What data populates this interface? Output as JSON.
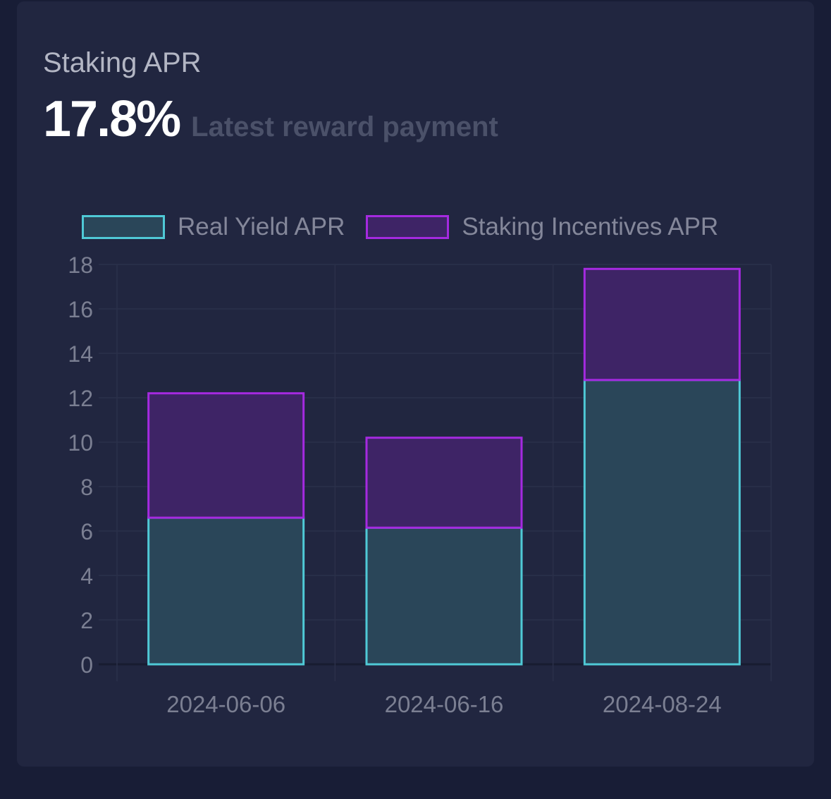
{
  "card": {
    "title": "Staking APR",
    "value": "17.8%",
    "subtitle": "Latest reward payment"
  },
  "colors": {
    "real_yield_fill": "#2a4659",
    "real_yield_border": "#4fc9d6",
    "incentives_fill": "#3e2466",
    "incentives_border": "#a52ae0",
    "grid": "#2b304a"
  },
  "chart_data": {
    "type": "bar",
    "stacked": true,
    "categories": [
      "2024-06-06",
      "2024-06-16",
      "2024-08-24"
    ],
    "series": [
      {
        "name": "Real Yield APR",
        "values": [
          6.6,
          6.15,
          12.8
        ]
      },
      {
        "name": "Staking Incentives APR",
        "values": [
          5.6,
          4.05,
          5.0
        ]
      }
    ],
    "ylim": [
      0,
      18
    ],
    "yticks": [
      0,
      2,
      4,
      6,
      8,
      10,
      12,
      14,
      16,
      18
    ],
    "legend": "top",
    "grid": true,
    "xlabel": "",
    "ylabel": ""
  }
}
